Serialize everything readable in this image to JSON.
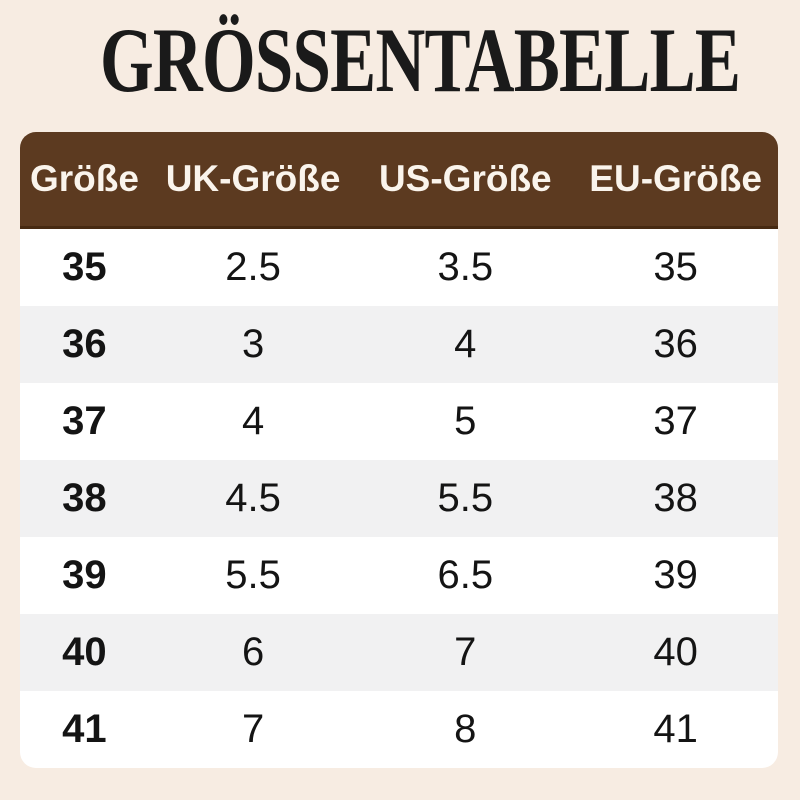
{
  "title": {
    "text": "GRÖSSENTABELLE"
  },
  "colors": {
    "bg": "#f7ece2",
    "brown": "#5c3a20",
    "brownDark": "#472a12",
    "headerText": "#faf4ec",
    "rowWhite": "#ffffff",
    "rowAlt": "#f1f1f2",
    "bodyText": "#141414",
    "titleColor": "#1a1a1a"
  },
  "chart_data": {
    "type": "table",
    "title": "GRÖSSENTABELLE",
    "columns": [
      "Größe",
      "UK-Größe",
      "US-Größe",
      "EU-Größe"
    ],
    "rows": [
      [
        "35",
        "2.5",
        "3.5",
        "35"
      ],
      [
        "36",
        "3",
        "4",
        "36"
      ],
      [
        "37",
        "4",
        "5",
        "37"
      ],
      [
        "38",
        "4.5",
        "5.5",
        "38"
      ],
      [
        "39",
        "5.5",
        "6.5",
        "39"
      ],
      [
        "40",
        "6",
        "7",
        "40"
      ],
      [
        "41",
        "7",
        "8",
        "41"
      ]
    ],
    "layout": {
      "header_background": "#5c3a20",
      "alternating_rows": true,
      "first_column_bold": true
    }
  }
}
